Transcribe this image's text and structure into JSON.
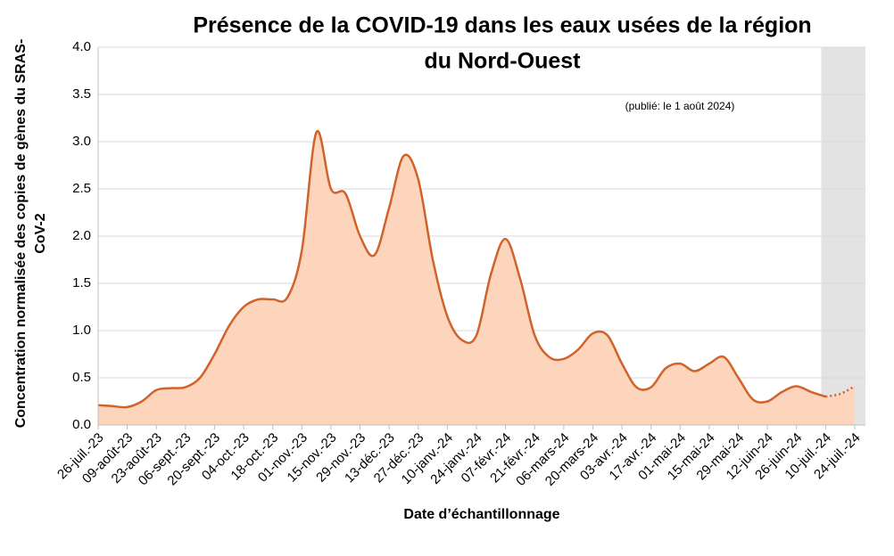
{
  "chart_data": {
    "type": "area",
    "title": [
      "Présence de la COVID-19 dans les eaux usées de la région",
      "du Nord-Ouest"
    ],
    "subtitle": "(publié: le 1 août 2024)",
    "x_label": "Date d’échantillonnage",
    "y_label": [
      "Concentration normalisée des copies de gènes du SRAS-",
      "CoV-2"
    ],
    "categories": [
      "26-juil.-23",
      null,
      "09-août-23",
      null,
      "23-août-23",
      null,
      "06-sept.-23",
      null,
      "20-sept.-23",
      null,
      "04-oct.-23",
      null,
      "18-oct.-23",
      null,
      "01-nov.-23",
      null,
      "15-nov.-23",
      null,
      "29-nov.-23",
      null,
      "13-déc.-23",
      null,
      "27-déc.-23",
      null,
      "10-janv.-24",
      null,
      "24-janv.-24",
      null,
      "07-févr.-24",
      null,
      "21-févr.-24",
      null,
      "06-mars-24",
      null,
      "20-mars-24",
      null,
      "03-avr.-24",
      null,
      "17-avr.-24",
      null,
      "01-mai-24",
      null,
      "15-mai-24",
      null,
      "29-mai-24",
      null,
      "12-juin-24",
      null,
      "26-juin-24",
      null,
      "10-juil.-24",
      null,
      "24-juil.-24"
    ],
    "values": [
      0.21,
      0.2,
      0.19,
      0.25,
      0.37,
      0.39,
      0.4,
      0.5,
      0.75,
      1.05,
      1.25,
      1.33,
      1.33,
      1.35,
      1.85,
      3.1,
      2.5,
      2.45,
      2.0,
      1.8,
      2.3,
      2.85,
      2.6,
      1.75,
      1.15,
      0.9,
      0.95,
      1.6,
      1.97,
      1.55,
      0.95,
      0.72,
      0.7,
      0.8,
      0.97,
      0.95,
      0.65,
      0.4,
      0.4,
      0.6,
      0.65,
      0.57,
      0.65,
      0.72,
      0.5,
      0.27,
      0.25,
      0.35,
      0.41,
      0.35,
      0.3,
      0.33,
      0.41
    ],
    "provisional_from": "10-juil.-24",
    "color": "#d0632a",
    "fill": "#fdd5bd",
    "shade": "#e3e3e3",
    "ylim": [
      0,
      4
    ],
    "yticks": [
      {
        "value": 0,
        "label": "0.0"
      },
      {
        "value": 0.5,
        "label": "0.5"
      },
      {
        "value": 1,
        "label": "1.0"
      },
      {
        "value": 1.5,
        "label": "1.5"
      },
      {
        "value": 2,
        "label": "2.0"
      },
      {
        "value": 2.5,
        "label": "2.5"
      },
      {
        "value": 3,
        "label": "3.0"
      },
      {
        "value": 3.5,
        "label": "3.5"
      },
      {
        "value": 4,
        "label": "4.0"
      }
    ],
    "grid": true
  }
}
